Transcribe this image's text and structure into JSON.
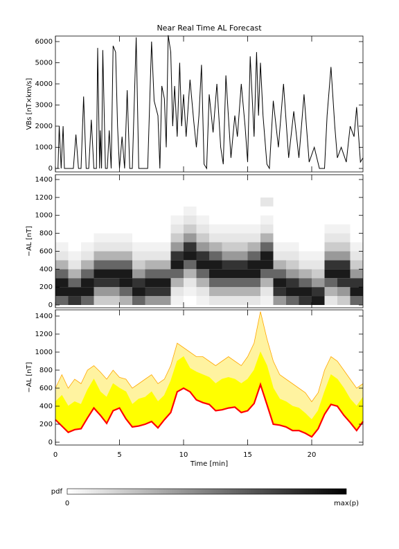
{
  "chart_data": [
    {
      "type": "line",
      "title": "Near Real Time AL Forecast",
      "ylabel": "VBs [nT×km/s]",
      "color": "#000000",
      "x": [
        0,
        0.2,
        0.3,
        0.45,
        0.6,
        0.7,
        0.85,
        1.0,
        1.4,
        1.6,
        1.8,
        2.0,
        2.2,
        2.4,
        2.6,
        2.8,
        3.0,
        3.2,
        3.3,
        3.45,
        3.5,
        3.6,
        3.7,
        3.9,
        4.05,
        4.2,
        4.35,
        4.5,
        4.7,
        4.85,
        5.0,
        5.2,
        5.4,
        5.6,
        5.8,
        6.0,
        6.3,
        6.5,
        7.2,
        7.5,
        7.7,
        8.0,
        8.15,
        8.3,
        8.5,
        8.65,
        8.8,
        9.0,
        9.15,
        9.3,
        9.5,
        9.7,
        9.85,
        10.0,
        10.2,
        10.5,
        10.8,
        11.0,
        11.2,
        11.4,
        11.6,
        11.8,
        12.0,
        12.3,
        12.6,
        12.9,
        13.1,
        13.3,
        13.7,
        14.0,
        14.2,
        14.5,
        14.8,
        15.0,
        15.2,
        15.5,
        15.7,
        15.85,
        16.0,
        16.2,
        16.5,
        16.7,
        17.0,
        17.4,
        17.8,
        18.2,
        18.6,
        19.0,
        19.4,
        19.8,
        20.2,
        20.6,
        21.0,
        21.2,
        21.5,
        21.8,
        22.0,
        22.3,
        22.7,
        23.0,
        23.3,
        23.5,
        23.8,
        24.0
      ],
      "values": [
        0,
        0,
        2000,
        0,
        2000,
        0,
        0,
        0,
        0,
        1600,
        0,
        0,
        3400,
        0,
        0,
        2300,
        0,
        0,
        5700,
        0,
        1800,
        0,
        5600,
        0,
        0,
        1800,
        0,
        5800,
        5500,
        2000,
        0,
        1500,
        0,
        3700,
        0,
        0,
        6200,
        0,
        0,
        6000,
        3200,
        2500,
        0,
        3900,
        3300,
        1000,
        6300,
        5500,
        2000,
        3900,
        1500,
        5000,
        2000,
        3500,
        1500,
        4200,
        2200,
        1000,
        2500,
        4900,
        200,
        0,
        3500,
        1700,
        4000,
        1000,
        200,
        4400,
        500,
        2500,
        1500,
        4000,
        2000,
        300,
        5300,
        1500,
        5500,
        2500,
        5000,
        2500,
        200,
        0,
        3200,
        1000,
        4000,
        500,
        2700,
        500,
        3500,
        300,
        1000,
        0,
        0,
        2500,
        4800,
        2000,
        500,
        1000,
        300,
        2000,
        1500,
        2900,
        300,
        500
      ],
      "xlim": [
        0,
        24
      ],
      "xticks": [
        0,
        5,
        10,
        15,
        20
      ],
      "ylim": [
        -164,
        6262
      ],
      "yticks": [
        0,
        1000,
        2000,
        3000,
        4000,
        5000,
        6000
      ]
    },
    {
      "type": "heatmap",
      "ylabel": "−AL [nT]",
      "colormap": [
        "#ffffff",
        "#000000"
      ],
      "x_edges": [
        0,
        1,
        2,
        3,
        4,
        5,
        6,
        7,
        8,
        9,
        10,
        11,
        12,
        13,
        14,
        15,
        16,
        17,
        18,
        19,
        20,
        21,
        22,
        23,
        24
      ],
      "y_edges": [
        0,
        100,
        200,
        300,
        400,
        500,
        600,
        700,
        800,
        900,
        1000,
        1100,
        1200,
        1300,
        1400
      ],
      "z": [
        [
          0.6,
          0.9,
          0.9,
          0.6,
          0.3,
          0.1,
          0.05,
          0,
          0,
          0,
          0,
          0,
          0,
          0
        ],
        [
          0.8,
          0.9,
          0.6,
          0.3,
          0.1,
          0.05,
          0,
          0,
          0,
          0,
          0,
          0,
          0,
          0
        ],
        [
          0.6,
          0.9,
          0.9,
          0.6,
          0.3,
          0.1,
          0.05,
          0,
          0,
          0,
          0,
          0,
          0,
          0
        ],
        [
          0.2,
          0.4,
          0.8,
          0.9,
          0.6,
          0.3,
          0.1,
          0.05,
          0,
          0,
          0,
          0,
          0,
          0
        ],
        [
          0.2,
          0.4,
          0.8,
          0.9,
          0.6,
          0.3,
          0.1,
          0.05,
          0,
          0,
          0,
          0,
          0,
          0
        ],
        [
          0.3,
          0.6,
          0.9,
          0.9,
          0.6,
          0.3,
          0.1,
          0.05,
          0,
          0,
          0,
          0,
          0,
          0
        ],
        [
          0.6,
          0.9,
          0.8,
          0.4,
          0.2,
          0.1,
          0.05,
          0,
          0,
          0,
          0,
          0,
          0,
          0
        ],
        [
          0.4,
          0.8,
          0.9,
          0.6,
          0.3,
          0.1,
          0.05,
          0,
          0,
          0,
          0,
          0,
          0,
          0
        ],
        [
          0.4,
          0.8,
          0.9,
          0.6,
          0.3,
          0.1,
          0.05,
          0,
          0,
          0,
          0,
          0,
          0,
          0
        ],
        [
          0.05,
          0.1,
          0.3,
          0.6,
          0.9,
          0.8,
          0.4,
          0.2,
          0.1,
          0.05,
          0,
          0,
          0,
          0
        ],
        [
          0,
          0.05,
          0.1,
          0.3,
          0.6,
          0.9,
          0.8,
          0.4,
          0.2,
          0.1,
          0.05,
          0,
          0,
          0
        ],
        [
          0.05,
          0.1,
          0.3,
          0.6,
          0.9,
          0.8,
          0.4,
          0.2,
          0.1,
          0.05,
          0,
          0,
          0,
          0
        ],
        [
          0.1,
          0.3,
          0.6,
          0.9,
          0.9,
          0.6,
          0.3,
          0.1,
          0.05,
          0,
          0,
          0,
          0,
          0
        ],
        [
          0.1,
          0.3,
          0.6,
          0.9,
          0.8,
          0.4,
          0.2,
          0.1,
          0.05,
          0,
          0,
          0,
          0,
          0
        ],
        [
          0.1,
          0.3,
          0.6,
          0.9,
          0.8,
          0.4,
          0.2,
          0.1,
          0.05,
          0,
          0,
          0,
          0,
          0
        ],
        [
          0.1,
          0.3,
          0.6,
          0.9,
          0.9,
          0.6,
          0.3,
          0.1,
          0.05,
          0,
          0,
          0,
          0,
          0
        ],
        [
          0.05,
          0.1,
          0.3,
          0.6,
          0.9,
          0.9,
          0.6,
          0.3,
          0.1,
          0.05,
          0,
          0.1,
          0,
          0
        ],
        [
          0.4,
          0.8,
          0.9,
          0.6,
          0.3,
          0.1,
          0.05,
          0,
          0,
          0,
          0,
          0,
          0,
          0
        ],
        [
          0.6,
          0.9,
          0.8,
          0.4,
          0.2,
          0.1,
          0.05,
          0,
          0,
          0,
          0,
          0,
          0,
          0
        ],
        [
          0.8,
          0.9,
          0.6,
          0.3,
          0.1,
          0.05,
          0,
          0,
          0,
          0,
          0,
          0,
          0,
          0
        ],
        [
          0.9,
          0.8,
          0.4,
          0.2,
          0.1,
          0.05,
          0,
          0,
          0,
          0,
          0,
          0,
          0,
          0
        ],
        [
          0.1,
          0.3,
          0.6,
          0.9,
          0.8,
          0.4,
          0.2,
          0.1,
          0.05,
          0,
          0,
          0,
          0,
          0
        ],
        [
          0.2,
          0.4,
          0.8,
          0.9,
          0.8,
          0.4,
          0.2,
          0.1,
          0.05,
          0,
          0,
          0,
          0,
          0
        ],
        [
          0.6,
          0.9,
          0.8,
          0.4,
          0.2,
          0.1,
          0.05,
          0,
          0,
          0,
          0,
          0,
          0,
          0
        ]
      ],
      "xlim": [
        0,
        24
      ],
      "xticks": [
        0,
        5,
        10,
        15,
        20
      ],
      "ylim": [
        -31,
        1454
      ],
      "yticks": [
        0,
        200,
        400,
        600,
        800,
        1000,
        1200,
        1400
      ]
    },
    {
      "type": "band",
      "ylabel": "−AL [nT]",
      "xlabel": "Time [min]",
      "x": [
        0,
        0.5,
        1,
        1.5,
        2,
        2.5,
        3,
        3.5,
        4,
        4.5,
        5,
        5.5,
        6,
        6.5,
        7,
        7.5,
        8,
        8.5,
        9,
        9.5,
        10,
        10.5,
        11,
        11.5,
        12,
        12.5,
        13,
        13.5,
        14,
        14.5,
        15,
        15.5,
        16,
        16.5,
        17,
        17.5,
        18,
        18.5,
        19,
        19.5,
        20,
        20.5,
        21,
        21.5,
        22,
        22.5,
        23,
        23.5,
        24
      ],
      "series": [
        {
          "color": "#ffa500",
          "fill": "#fff3a0",
          "values": [
            600,
            750,
            600,
            700,
            650,
            800,
            850,
            780,
            700,
            800,
            720,
            700,
            600,
            650,
            700,
            750,
            650,
            700,
            850,
            1100,
            1050,
            1000,
            950,
            950,
            900,
            850,
            900,
            950,
            900,
            850,
            950,
            1100,
            1450,
            1150,
            900,
            750,
            700,
            650,
            600,
            550,
            450,
            550,
            800,
            950,
            900,
            800,
            700,
            600,
            650
          ]
        },
        {
          "color": "#ffff00",
          "fill": "#ffff00",
          "values": [
            450,
            520,
            400,
            450,
            420,
            580,
            700,
            560,
            500,
            650,
            600,
            560,
            420,
            480,
            500,
            560,
            450,
            520,
            680,
            900,
            950,
            820,
            780,
            750,
            720,
            650,
            700,
            720,
            700,
            650,
            700,
            800,
            1000,
            850,
            600,
            480,
            450,
            400,
            380,
            320,
            250,
            350,
            560,
            750,
            700,
            600,
            480,
            400,
            500
          ]
        },
        {
          "color": "#ff0000",
          "values": [
            250,
            180,
            110,
            140,
            150,
            270,
            380,
            300,
            210,
            350,
            380,
            260,
            170,
            180,
            200,
            230,
            160,
            250,
            330,
            560,
            600,
            560,
            470,
            440,
            420,
            350,
            360,
            380,
            390,
            330,
            350,
            430,
            640,
            420,
            200,
            190,
            170,
            130,
            130,
            100,
            60,
            150,
            310,
            420,
            400,
            300,
            220,
            130,
            230
          ]
        }
      ],
      "xlim": [
        0,
        24
      ],
      "xticks": [
        0,
        5,
        10,
        15,
        20
      ],
      "ylim": [
        -31,
        1469
      ],
      "yticks": [
        0,
        200,
        400,
        600,
        800,
        1000,
        1200,
        1400
      ]
    }
  ],
  "colorbar": {
    "label": "pdf",
    "min_label": "0",
    "max_label": "max(p)"
  }
}
